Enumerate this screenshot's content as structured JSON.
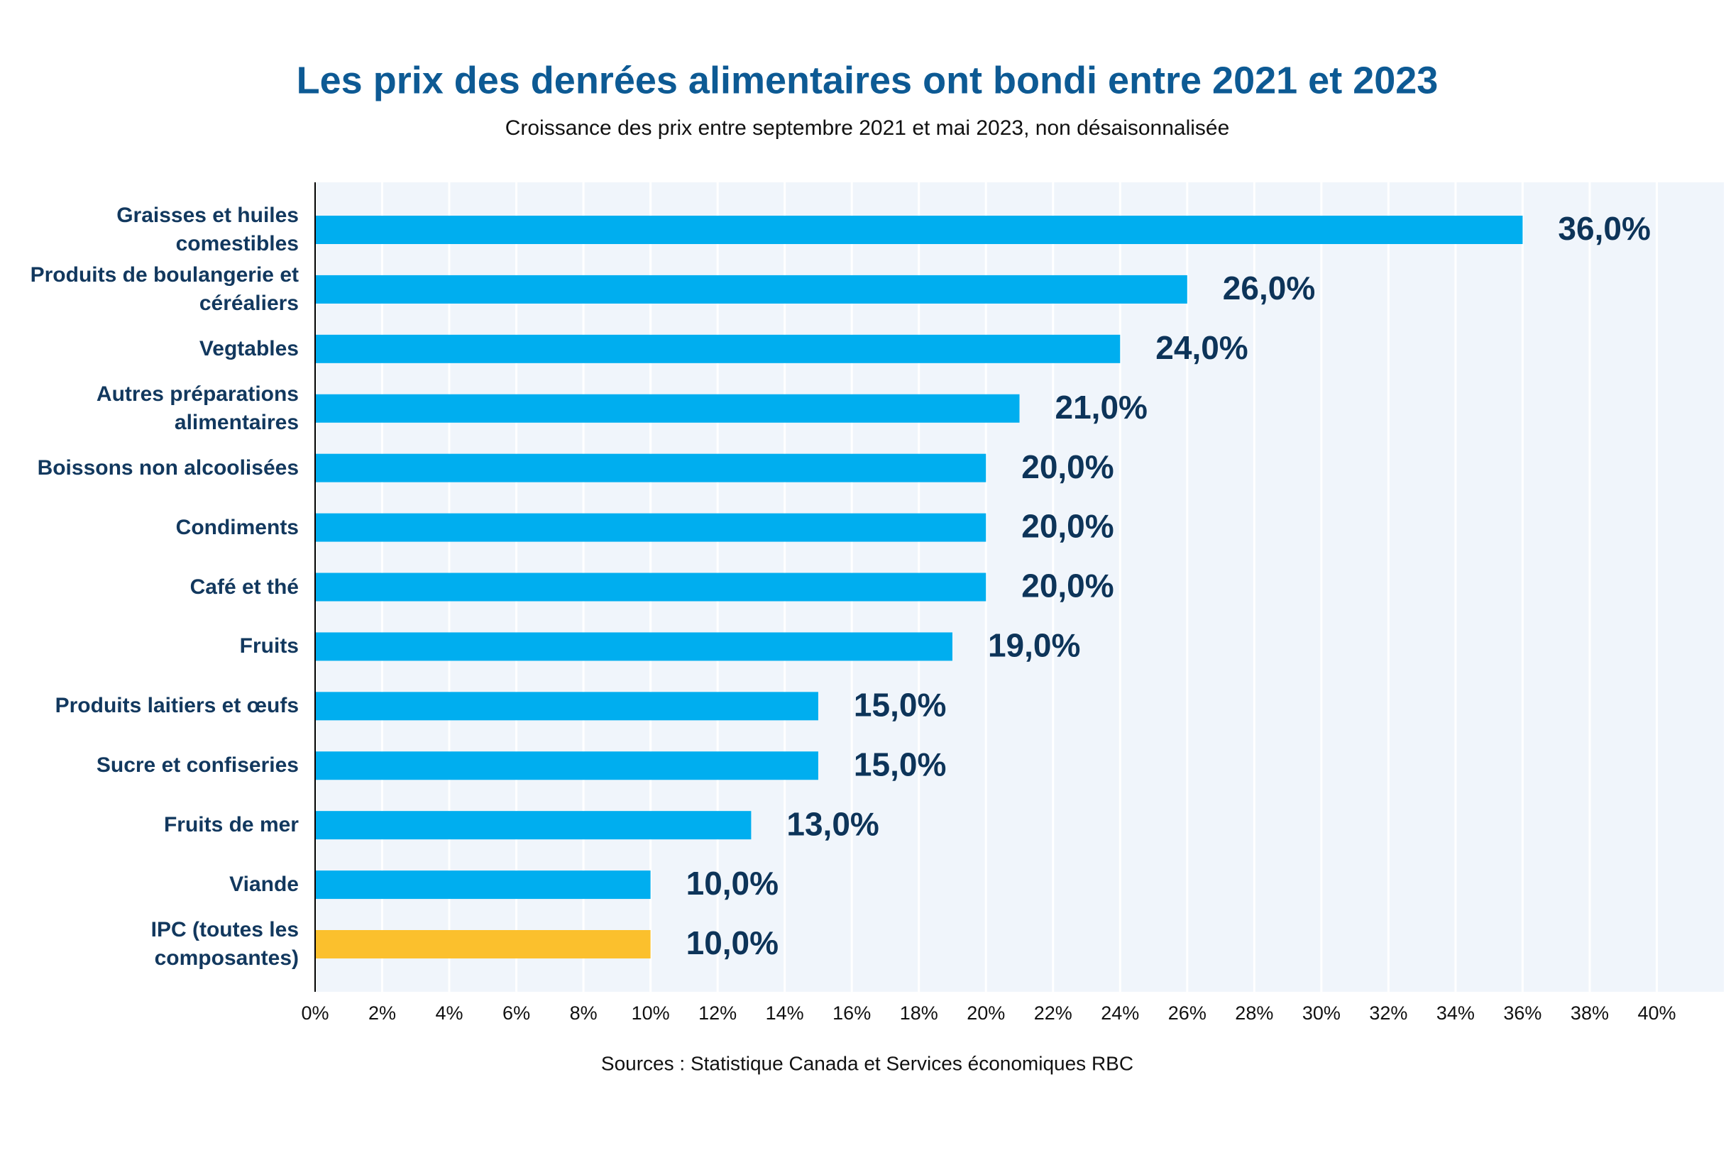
{
  "chart_data": {
    "type": "bar",
    "orientation": "horizontal",
    "title": "Les prix des denrées alimentaires ont bondi entre 2021 et 2023",
    "subtitle": "Croissance des prix entre septembre 2021 et mai 2023, non désaisonnalisée",
    "source": "Sources : Statistique Canada et Services économiques RBC",
    "categories": [
      "Graisses et huiles comestibles",
      "Produits de boulangerie et céréaliers",
      "Vegtables",
      "Autres préparations alimentaires",
      "Boissons non alcoolisées",
      "Condiments",
      "Café et thé",
      "Fruits",
      "Produits laitiers et œufs",
      "Sucre et confiseries",
      "Fruits de mer",
      "Viande",
      "IPC (toutes les composantes)"
    ],
    "values": [
      36,
      26,
      24,
      21,
      20,
      20,
      20,
      19,
      15,
      15,
      13,
      10,
      10
    ],
    "value_labels": [
      "36,0%",
      "26,0%",
      "24,0%",
      "21,0%",
      "20,0%",
      "20,0%",
      "20,0%",
      "19,0%",
      "15,0%",
      "15,0%",
      "13,0%",
      "10,0%",
      "10,0%"
    ],
    "colors": [
      "#00aeef",
      "#00aeef",
      "#00aeef",
      "#00aeef",
      "#00aeef",
      "#00aeef",
      "#00aeef",
      "#00aeef",
      "#00aeef",
      "#00aeef",
      "#00aeef",
      "#00aeef",
      "#fbc02d"
    ],
    "xlim": [
      0,
      42
    ],
    "xticks": [
      {
        "value": 0,
        "label": "0%"
      },
      {
        "value": 2,
        "label": "2%"
      },
      {
        "value": 4,
        "label": "4%"
      },
      {
        "value": 6,
        "label": "6%"
      },
      {
        "value": 8,
        "label": "8%"
      },
      {
        "value": 10,
        "label": "10%"
      },
      {
        "value": 12,
        "label": "12%"
      },
      {
        "value": 14,
        "label": "14%"
      },
      {
        "value": 16,
        "label": "16%"
      },
      {
        "value": 18,
        "label": "18%"
      },
      {
        "value": 20,
        "label": "20%"
      },
      {
        "value": 22,
        "label": "22%"
      },
      {
        "value": 24,
        "label": "24%"
      },
      {
        "value": 26,
        "label": "26%"
      },
      {
        "value": 28,
        "label": "28%"
      },
      {
        "value": 30,
        "label": "30%"
      },
      {
        "value": 32,
        "label": "32%"
      },
      {
        "value": 34,
        "label": "34%"
      },
      {
        "value": 36,
        "label": "36%"
      },
      {
        "value": 38,
        "label": "38%"
      },
      {
        "value": 40,
        "label": "40%"
      }
    ],
    "grid": true
  }
}
